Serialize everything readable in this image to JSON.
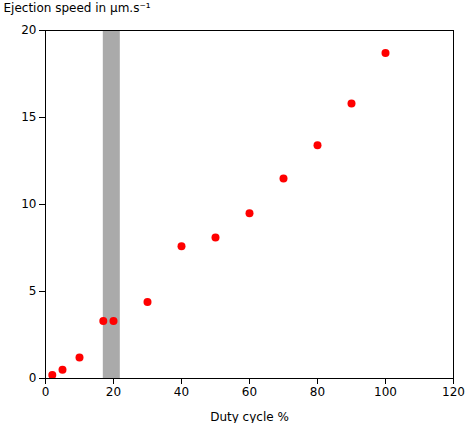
{
  "chart_data": {
    "type": "scatter",
    "x": [
      2,
      5,
      10,
      17,
      20,
      30,
      40,
      50,
      60,
      70,
      80,
      90,
      100
    ],
    "values": [
      0.2,
      0.5,
      1.2,
      3.3,
      3.3,
      4.4,
      7.6,
      8.1,
      9.5,
      11.5,
      13.4,
      15.8,
      18.7
    ],
    "color": "#ff0000",
    "marker": "circle",
    "band": {
      "x": [
        17,
        22
      ],
      "color": "#aaaaaa"
    },
    "xlabel": "Duty cycle %",
    "ylabel": "Ejection speed in μm.s⁻¹",
    "xlim": [
      0,
      120
    ],
    "ylim": [
      0,
      20
    ],
    "xticks": [
      0,
      20,
      40,
      60,
      80,
      100,
      120
    ],
    "yticks": [
      0,
      5,
      10,
      15,
      20
    ],
    "grid": false
  }
}
